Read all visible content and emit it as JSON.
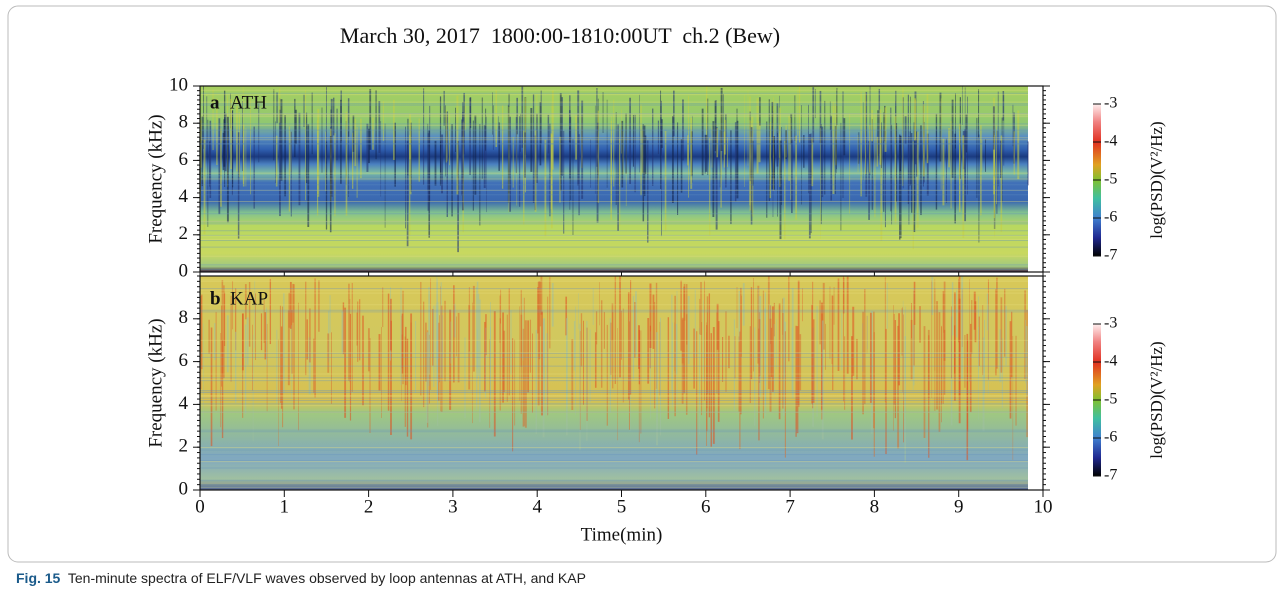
{
  "chart_data": [
    {
      "type": "heatmap",
      "title": "March 30, 2017  1800:00-1810:00UT  ch.2 (Bew)",
      "panel": "a",
      "station": "ATH",
      "ylabel": "Frequency (kHz)",
      "ylim": [
        0,
        10
      ],
      "yticks": [
        0,
        2,
        4,
        6,
        8,
        10
      ],
      "xlim": [
        0,
        10
      ],
      "xticks": [
        0,
        1,
        2,
        3,
        4,
        5,
        6,
        7,
        8,
        9,
        10
      ],
      "colorbar": {
        "label": "log(PSD)(V²/Hz)",
        "lim": [
          -7,
          -3
        ],
        "ticks": [
          -3,
          -4,
          -5,
          -6,
          -7
        ]
      }
    },
    {
      "type": "heatmap",
      "panel": "b",
      "station": "KAP",
      "xlabel": "Time(min)",
      "ylabel": "Frequency (kHz)",
      "ylim": [
        0,
        10
      ],
      "yticks": [
        0,
        2,
        4,
        6,
        8
      ],
      "xlim": [
        0,
        10
      ],
      "xticks": [
        0,
        1,
        2,
        3,
        4,
        5,
        6,
        7,
        8,
        9,
        10
      ],
      "colorbar": {
        "label": "log(PSD)(V²/Hz)",
        "lim": [
          -7,
          -3
        ],
        "ticks": [
          -3,
          -4,
          -5,
          -6,
          -7
        ]
      }
    }
  ],
  "caption": {
    "label": "Fig. 15",
    "text": "Ten-minute spectra of ELF/VLF waves observed by loop antennas at ATH, and KAP"
  }
}
